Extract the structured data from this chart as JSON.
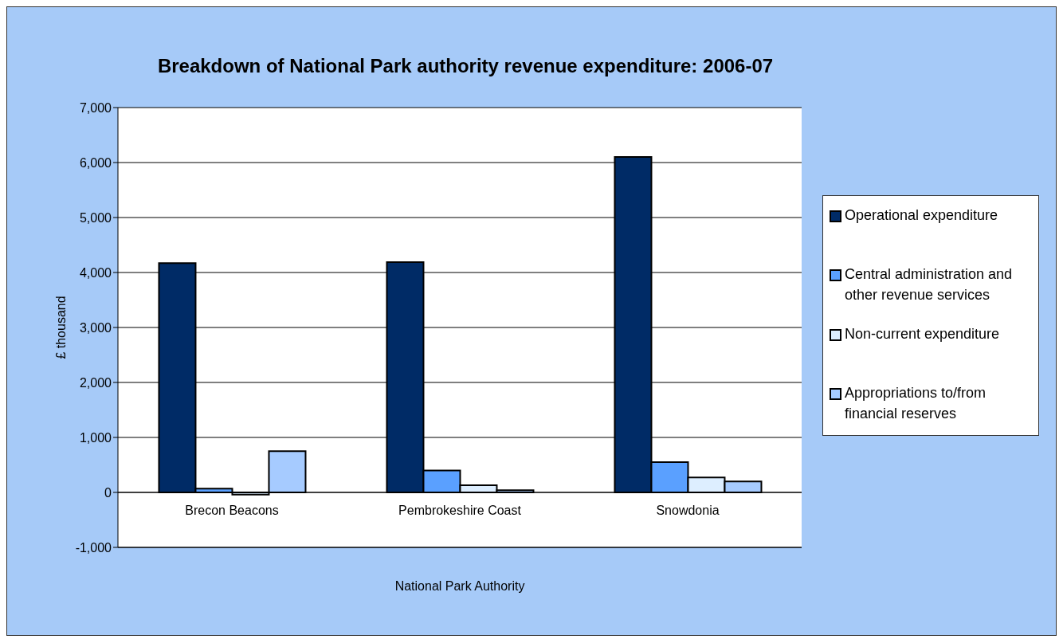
{
  "chart_data": {
    "type": "bar",
    "title": "Breakdown of National Park authority revenue expenditure: 2006-07",
    "xlabel": "National Park Authority",
    "ylabel": "£ thousand",
    "categories": [
      "Brecon Beacons",
      "Pembrokeshire Coast",
      "Snowdonia"
    ],
    "series": [
      {
        "name": "Operational expenditure",
        "color": "#002b66",
        "values": [
          4170,
          4190,
          6100
        ]
      },
      {
        "name": "Central administration and other revenue services",
        "color": "#5aa0ff",
        "values": [
          70,
          400,
          550
        ]
      },
      {
        "name": "Non-current expenditure",
        "color": "#ddeeff",
        "values": [
          -40,
          130,
          270
        ]
      },
      {
        "name": "Appropriations to/from financial reserves",
        "color": "#a6cbff",
        "values": [
          750,
          40,
          200
        ]
      }
    ],
    "ylim": [
      -1000,
      7000
    ],
    "yticks": [
      {
        "value": -1000,
        "label": "-1,000"
      },
      0,
      {
        "value": 1000,
        "label": "1,000"
      },
      {
        "value": 2000,
        "label": "2,000"
      },
      {
        "value": 3000,
        "label": "3,000"
      },
      {
        "value": 4000,
        "label": "4,000"
      },
      {
        "value": 5000,
        "label": "5,000"
      },
      {
        "value": 6000,
        "label": "6,000"
      },
      {
        "value": 7000,
        "label": "7,000"
      }
    ],
    "grid": "y",
    "legend": "right"
  }
}
